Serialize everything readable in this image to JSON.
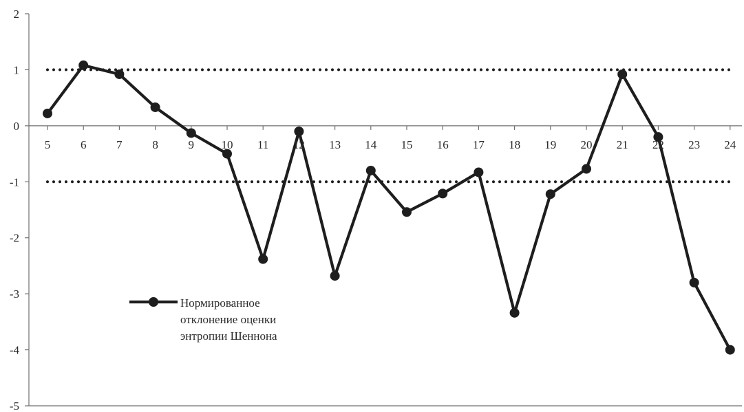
{
  "chart_data": {
    "type": "line",
    "title": "",
    "xlabel": "",
    "ylabel": "",
    "x": [
      5,
      6,
      7,
      8,
      9,
      10,
      11,
      12,
      13,
      14,
      15,
      16,
      17,
      18,
      19,
      20,
      21,
      22,
      23,
      24
    ],
    "ylim": [
      -5,
      2
    ],
    "y_ticks": [
      2,
      1,
      0,
      -1,
      -2,
      -3,
      -4,
      -5
    ],
    "series": [
      {
        "name": "Нормированное отклонение оценки энтропии Шеннона",
        "legend_lines": [
          "Нормированное",
          "отклонение оценки",
          "энтропии Шеннона"
        ],
        "values": [
          0.22,
          1.08,
          0.92,
          0.33,
          -0.13,
          -0.5,
          -2.38,
          -0.1,
          -2.68,
          -0.8,
          -1.54,
          -1.21,
          -0.83,
          -3.34,
          -1.22,
          -0.77,
          0.92,
          -0.2,
          -2.8,
          -4.0
        ],
        "color": "#1e1e1e",
        "marker": "circle"
      }
    ],
    "reference_lines": [
      {
        "y": 1,
        "style": "dotted",
        "color": "#1e1e1e"
      },
      {
        "y": -1,
        "style": "dotted",
        "color": "#1e1e1e"
      }
    ],
    "grid": false,
    "legend_position": "bottom-left"
  }
}
